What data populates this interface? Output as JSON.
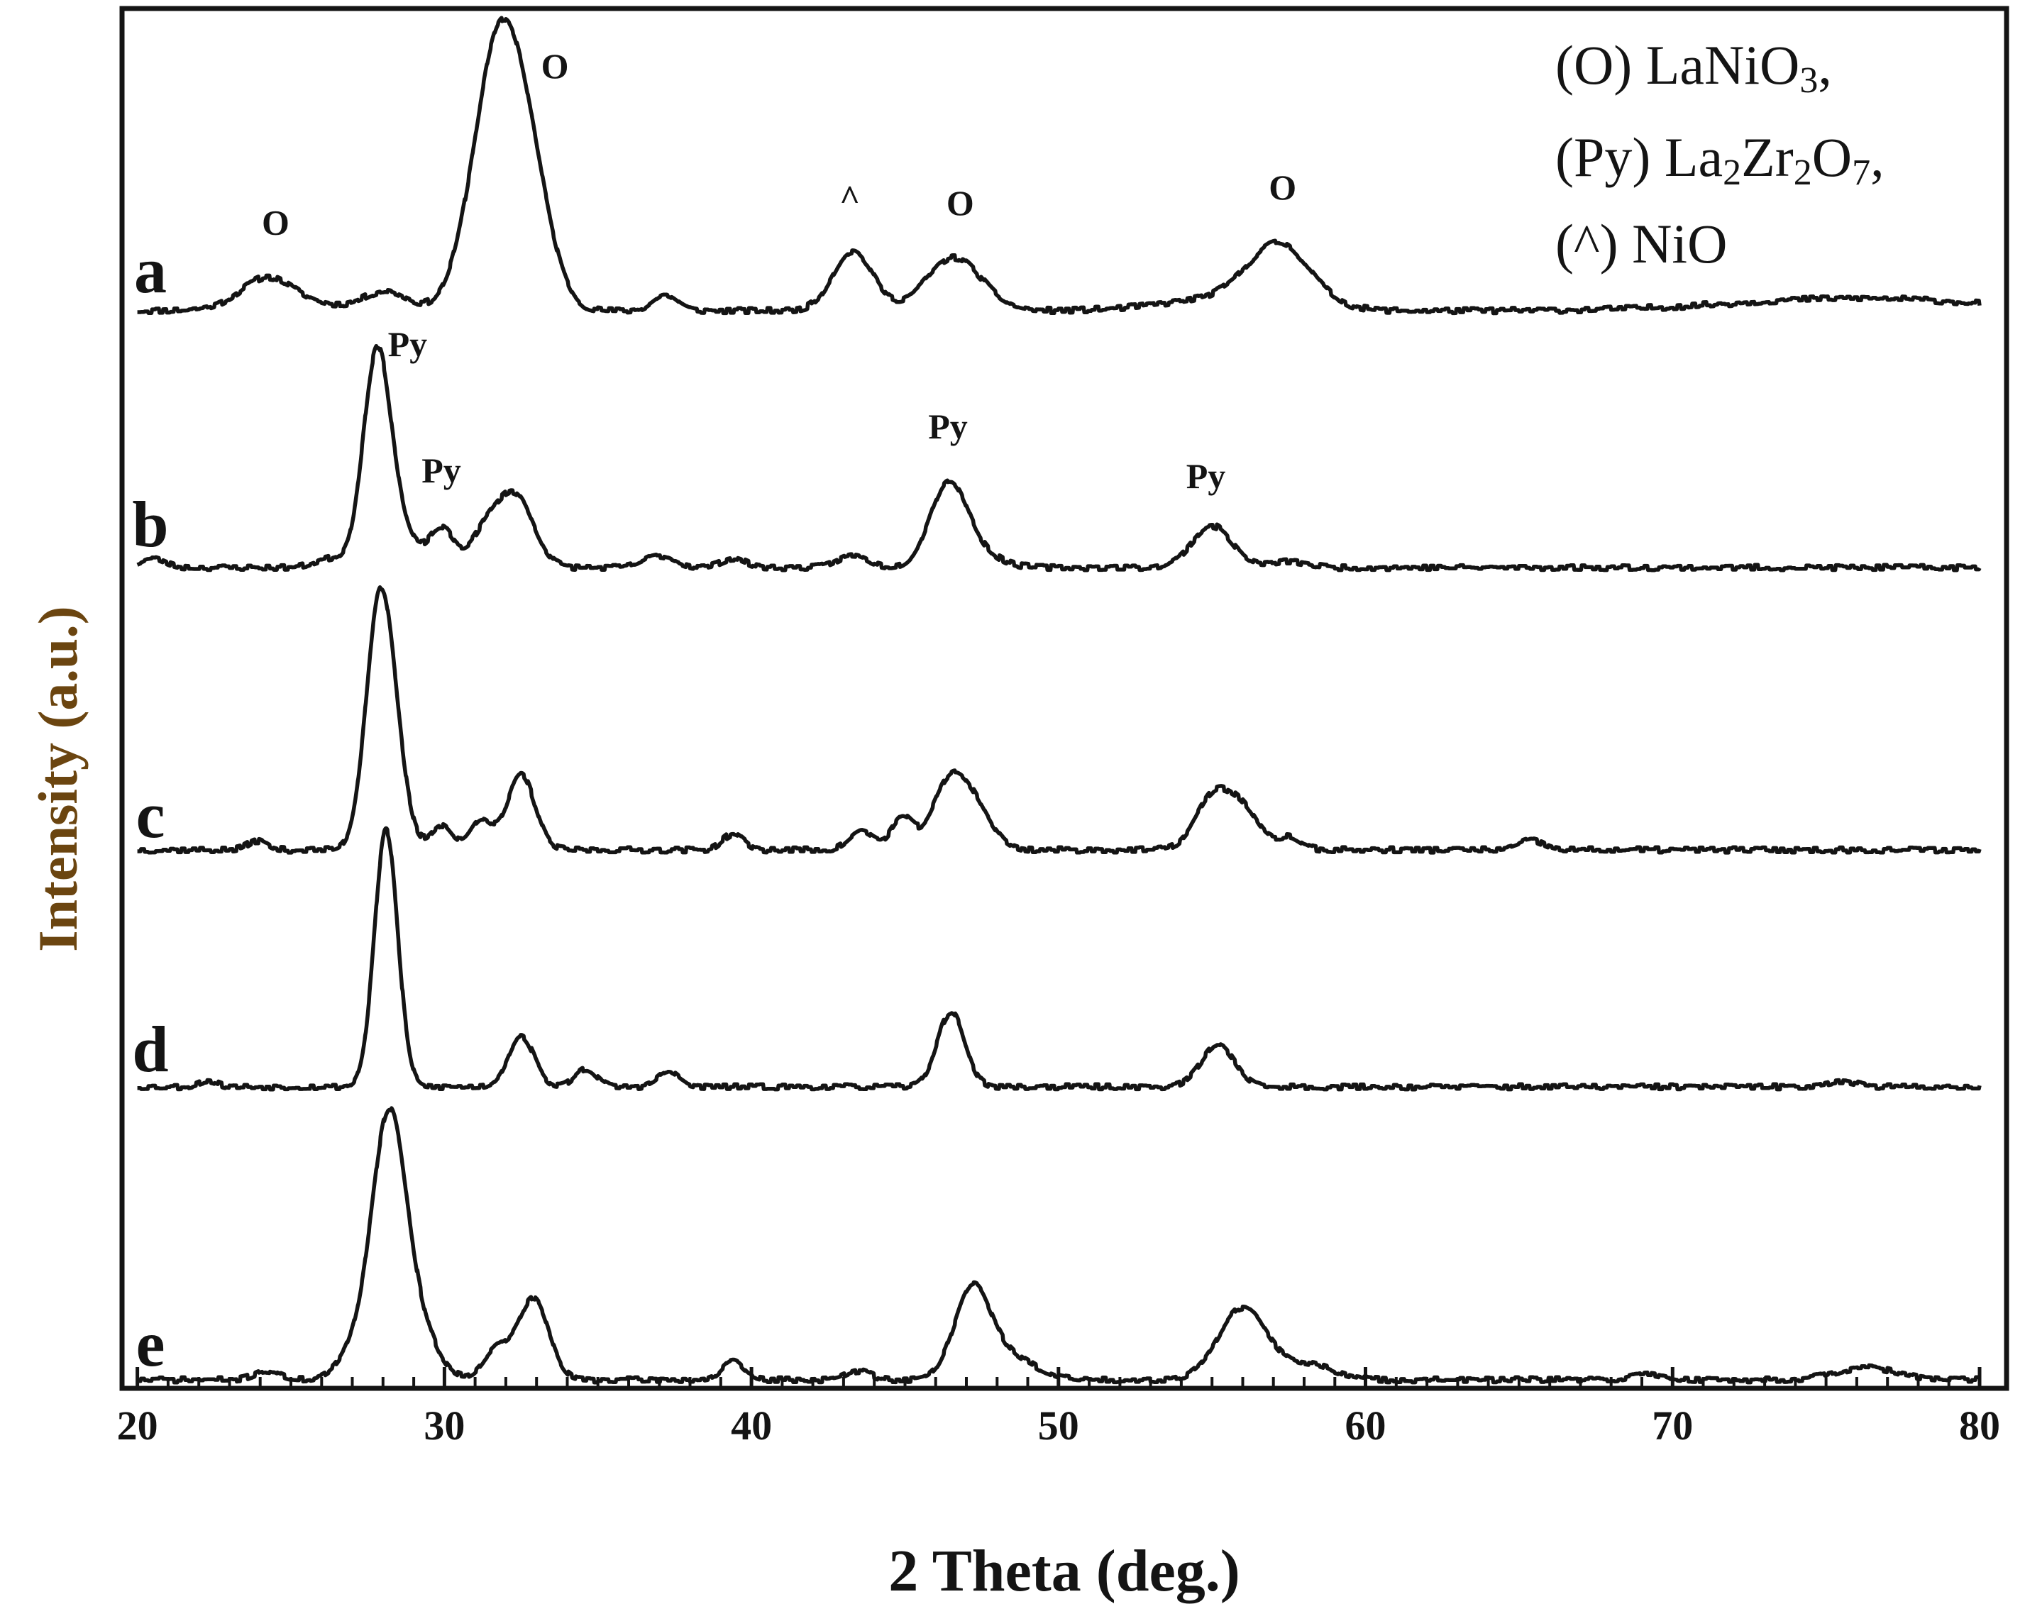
{
  "chart_data": {
    "type": "line",
    "xlabel": "2 Theta (deg.)",
    "ylabel": "Intensity (a.u.)",
    "xlim": [
      19.5,
      80
    ],
    "x_ticks": [
      20,
      30,
      40,
      50,
      60,
      70,
      80
    ],
    "minor_tick_step": 1,
    "y_ticks": "none",
    "grid": false,
    "legend_position": "top-right",
    "legend": [
      {
        "symbol": "(O)",
        "phase": "LaNiO",
        "sub1": "3",
        "sep": ","
      },
      {
        "symbol": "(Py)",
        "phase": "La",
        "sub1": "2",
        "mid": "Zr",
        "sub2": "2",
        "end": "O",
        "sub3": "7",
        "sep": ","
      },
      {
        "symbol": "(^)",
        "phase": "NiO"
      }
    ],
    "series": [
      {
        "name": "a",
        "baseline": 0.0,
        "noise_seed": 11,
        "peaks": [
          [
            24.2,
            0.08,
            0.8
          ],
          [
            28.1,
            0.06,
            0.7
          ],
          [
            31.8,
            0.86,
            0.85
          ],
          [
            32.9,
            0.22,
            0.7
          ],
          [
            37.2,
            0.05,
            0.4
          ],
          [
            43.3,
            0.19,
            0.65
          ],
          [
            46.6,
            0.17,
            0.9
          ],
          [
            57.2,
            0.19,
            1.0
          ],
          [
            24.8,
            0.03,
            1.5
          ],
          [
            55.5,
            0.04,
            2.0
          ],
          [
            76.0,
            0.04,
            4.0
          ]
        ],
        "peak_labels": [
          {
            "text": "O",
            "x": 24.5
          },
          {
            "text": "O",
            "x": 33.1
          },
          {
            "text": "^",
            "x": 43.2
          },
          {
            "text": "O",
            "x": 46.8
          },
          {
            "text": "O",
            "x": 57.3
          }
        ]
      },
      {
        "name": "b",
        "baseline": 0.0,
        "noise_seed": 23,
        "peaks": [
          [
            20.5,
            0.03,
            0.4
          ],
          [
            26.3,
            0.03,
            0.5
          ],
          [
            27.8,
            0.71,
            0.45
          ],
          [
            28.6,
            0.1,
            0.5
          ],
          [
            29.9,
            0.13,
            0.4
          ],
          [
            31.3,
            0.1,
            0.5
          ],
          [
            32.3,
            0.24,
            0.6
          ],
          [
            37.0,
            0.04,
            0.5
          ],
          [
            39.4,
            0.03,
            0.4
          ],
          [
            43.3,
            0.04,
            0.5
          ],
          [
            46.4,
            0.26,
            0.6
          ],
          [
            47.2,
            0.05,
            0.8
          ],
          [
            55.0,
            0.14,
            0.65
          ],
          [
            57.5,
            0.02,
            0.6
          ]
        ],
        "peak_labels": [
          {
            "text": "Py",
            "x": 29.5
          },
          {
            "text": "Py",
            "x": 30.0
          },
          {
            "text": "Py",
            "x": 46.4
          },
          {
            "text": "Py",
            "x": 54.8
          }
        ]
      },
      {
        "name": "c",
        "baseline": 0.0,
        "noise_seed": 37,
        "peaks": [
          [
            23.9,
            0.03,
            0.3
          ],
          [
            27.9,
            0.8,
            0.45
          ],
          [
            28.5,
            0.12,
            0.4
          ],
          [
            29.9,
            0.08,
            0.35
          ],
          [
            31.2,
            0.1,
            0.35
          ],
          [
            32.5,
            0.24,
            0.45
          ],
          [
            39.4,
            0.05,
            0.35
          ],
          [
            43.6,
            0.06,
            0.4
          ],
          [
            44.9,
            0.1,
            0.35
          ],
          [
            46.5,
            0.22,
            0.6
          ],
          [
            47.4,
            0.09,
            0.55
          ],
          [
            55.1,
            0.18,
            0.6
          ],
          [
            56.1,
            0.1,
            0.5
          ],
          [
            57.5,
            0.04,
            0.4
          ],
          [
            65.4,
            0.03,
            0.4
          ]
        ],
        "peak_labels": []
      },
      {
        "name": "d",
        "baseline": 0.0,
        "noise_seed": 53,
        "peaks": [
          [
            22.3,
            0.02,
            0.3
          ],
          [
            28.1,
            0.86,
            0.38
          ],
          [
            32.5,
            0.17,
            0.42
          ],
          [
            34.6,
            0.06,
            0.35
          ],
          [
            37.3,
            0.05,
            0.35
          ],
          [
            46.5,
            0.25,
            0.45
          ],
          [
            55.2,
            0.14,
            0.55
          ],
          [
            75.5,
            0.02,
            0.5
          ]
        ],
        "peak_labels": []
      },
      {
        "name": "e",
        "baseline": 0.0,
        "noise_seed": 71,
        "peaks": [
          [
            24.2,
            0.03,
            0.4
          ],
          [
            27.2,
            0.1,
            0.6
          ],
          [
            28.2,
            0.85,
            0.55
          ],
          [
            29.2,
            0.15,
            0.6
          ],
          [
            31.7,
            0.1,
            0.45
          ],
          [
            32.9,
            0.27,
            0.5
          ],
          [
            39.4,
            0.06,
            0.35
          ],
          [
            43.5,
            0.03,
            0.4
          ],
          [
            47.2,
            0.3,
            0.6
          ],
          [
            48.5,
            0.07,
            0.8
          ],
          [
            56.0,
            0.24,
            0.8
          ],
          [
            58.2,
            0.05,
            0.8
          ],
          [
            69.2,
            0.02,
            0.5
          ],
          [
            76.3,
            0.04,
            1.0
          ]
        ],
        "peak_labels": []
      }
    ]
  }
}
